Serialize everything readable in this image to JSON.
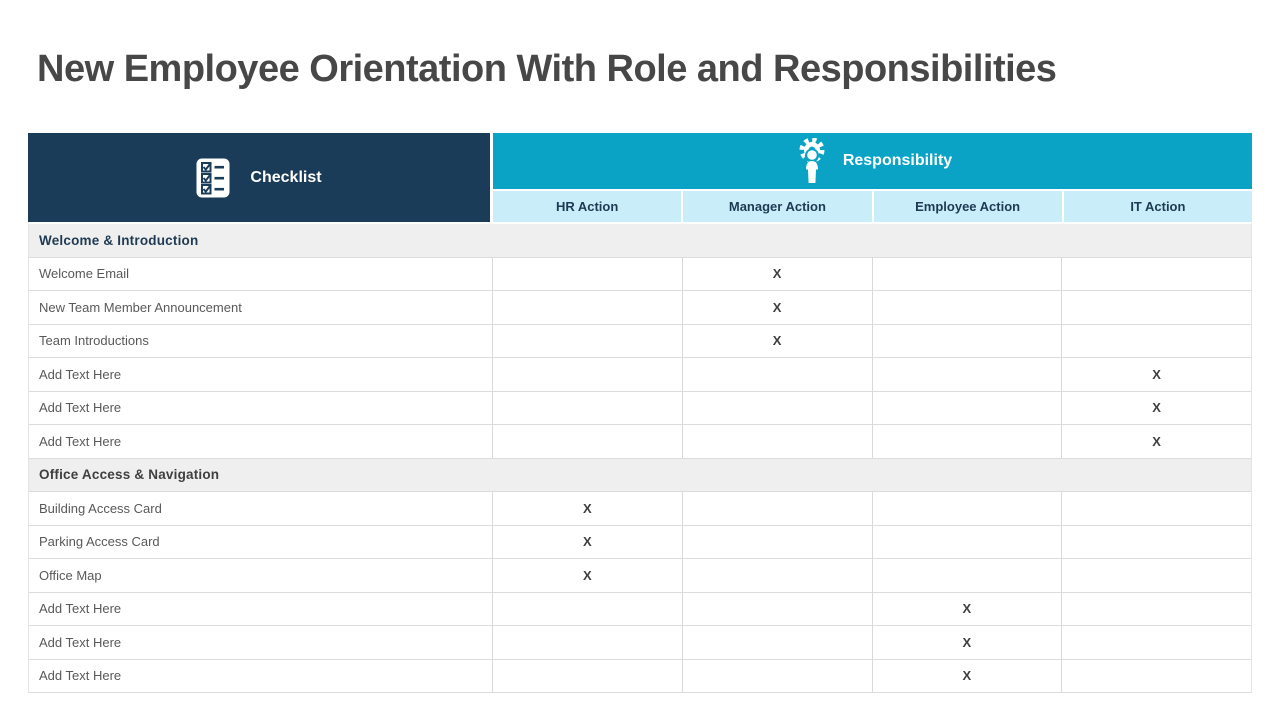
{
  "slide": {
    "title": "New Employee Orientation With Role and Responsibilities"
  },
  "table": {
    "checklist": {
      "label": "Checklist",
      "icon": "checklist-icon"
    },
    "responsibility": {
      "label": "Responsibility",
      "icon": "person-gear-icon"
    },
    "action_columns": [
      "HR Action",
      "Manager Action",
      "Employee Action",
      "IT Action"
    ],
    "sections": [
      {
        "title": "Welcome & Introduction",
        "title_color": "#1f3a52",
        "rows": [
          {
            "label": "Welcome Email",
            "cells": [
              "",
              "X",
              "",
              ""
            ]
          },
          {
            "label": "New Team Member Announcement",
            "cells": [
              "",
              "X",
              "",
              ""
            ]
          },
          {
            "label": "Team Introductions",
            "cells": [
              "",
              "X",
              "",
              ""
            ]
          },
          {
            "label": "Add Text Here",
            "cells": [
              "",
              "",
              "",
              "X"
            ]
          },
          {
            "label": "Add Text Here",
            "cells": [
              "",
              "",
              "",
              "X"
            ]
          },
          {
            "label": "Add Text Here",
            "cells": [
              "",
              "",
              "",
              "X"
            ]
          }
        ]
      },
      {
        "title": "Office Access & Navigation",
        "title_color": "#3f3f3f",
        "rows": [
          {
            "label": "Building Access Card",
            "cells": [
              "X",
              "",
              "",
              ""
            ]
          },
          {
            "label": "Parking Access Card",
            "cells": [
              "X",
              "",
              "",
              ""
            ]
          },
          {
            "label": "Office Map",
            "cells": [
              "X",
              "",
              "",
              ""
            ]
          },
          {
            "label": "Add Text Here",
            "cells": [
              "",
              "",
              "X",
              ""
            ]
          },
          {
            "label": "Add Text Here",
            "cells": [
              "",
              "",
              "X",
              ""
            ]
          },
          {
            "label": "Add Text Here",
            "cells": [
              "",
              "",
              "X",
              ""
            ]
          }
        ]
      }
    ]
  },
  "colors": {
    "navy": "#1b3c58",
    "cyan": "#0aa3c6",
    "light_cyan": "#c9eefa",
    "section_bg": "#efefef",
    "grid_line": "#d9d9d9",
    "title_text": "#474747",
    "row_text": "#595959",
    "mark_text": "#3f3f3f",
    "subheader_text": "#1e3a52"
  }
}
